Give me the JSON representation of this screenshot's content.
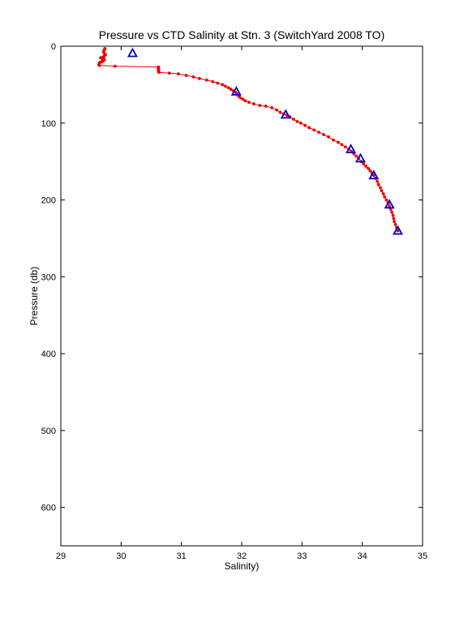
{
  "chart_data": {
    "type": "scatter",
    "title": "Pressure vs CTD Salinity at Stn. 3 (SwitchYard 2008 TO)",
    "xlabel": "Salinity)",
    "ylabel": "Pressure (db)",
    "xlim": [
      29,
      35
    ],
    "ylim": [
      0,
      650
    ],
    "y_reversed": true,
    "grid": false,
    "x_ticks": [
      29,
      30,
      31,
      32,
      33,
      34,
      35
    ],
    "y_ticks": [
      0,
      100,
      200,
      300,
      400,
      500,
      600
    ],
    "series": [
      {
        "style": "line-with-dots",
        "color": "#ee0000",
        "points": [
          [
            29.73,
            3
          ],
          [
            29.72,
            5
          ],
          [
            29.71,
            7
          ],
          [
            29.72,
            9
          ],
          [
            29.74,
            11
          ],
          [
            29.72,
            13
          ],
          [
            29.7,
            14
          ],
          [
            29.66,
            15
          ],
          [
            29.68,
            16
          ],
          [
            29.72,
            17
          ],
          [
            29.72,
            18
          ],
          [
            29.7,
            19
          ],
          [
            29.68,
            20
          ],
          [
            29.65,
            21
          ],
          [
            29.64,
            22
          ],
          [
            29.64,
            23
          ],
          [
            29.63,
            24
          ],
          [
            29.64,
            25
          ],
          [
            29.9,
            26
          ],
          [
            30.62,
            27
          ],
          [
            30.62,
            28
          ],
          [
            30.62,
            29
          ],
          [
            30.62,
            30
          ],
          [
            30.62,
            31
          ],
          [
            30.62,
            32
          ],
          [
            30.62,
            33
          ],
          [
            30.63,
            34
          ],
          [
            30.8,
            35
          ],
          [
            30.95,
            36
          ],
          [
            31.08,
            38
          ],
          [
            31.2,
            40
          ],
          [
            31.3,
            42
          ],
          [
            31.42,
            44
          ],
          [
            31.52,
            46
          ],
          [
            31.6,
            48
          ],
          [
            31.68,
            50
          ],
          [
            31.73,
            52
          ],
          [
            31.78,
            54
          ],
          [
            31.82,
            56
          ],
          [
            31.86,
            58
          ],
          [
            31.9,
            60
          ],
          [
            31.92,
            62
          ],
          [
            31.95,
            65
          ],
          [
            31.98,
            67
          ],
          [
            32.02,
            69
          ],
          [
            32.06,
            71
          ],
          [
            32.12,
            73
          ],
          [
            32.2,
            75
          ],
          [
            32.3,
            77
          ],
          [
            32.4,
            78
          ],
          [
            32.5,
            80
          ],
          [
            32.58,
            83
          ],
          [
            32.64,
            86
          ],
          [
            32.7,
            88
          ],
          [
            32.75,
            90
          ],
          [
            32.8,
            92
          ],
          [
            32.86,
            95
          ],
          [
            32.92,
            98
          ],
          [
            32.98,
            100
          ],
          [
            33.05,
            103
          ],
          [
            33.12,
            106
          ],
          [
            33.2,
            109
          ],
          [
            33.28,
            112
          ],
          [
            33.36,
            115
          ],
          [
            33.44,
            118
          ],
          [
            33.52,
            122
          ],
          [
            33.6,
            125
          ],
          [
            33.66,
            128
          ],
          [
            33.72,
            131
          ],
          [
            33.78,
            134
          ],
          [
            33.82,
            137
          ],
          [
            33.86,
            140
          ],
          [
            33.9,
            143
          ],
          [
            33.94,
            146
          ],
          [
            33.98,
            150
          ],
          [
            34.02,
            153
          ],
          [
            34.06,
            156
          ],
          [
            34.1,
            159
          ],
          [
            34.13,
            162
          ],
          [
            34.16,
            165
          ],
          [
            34.19,
            168
          ],
          [
            34.22,
            172
          ],
          [
            34.25,
            176
          ],
          [
            34.27,
            180
          ],
          [
            34.3,
            184
          ],
          [
            34.32,
            188
          ],
          [
            34.35,
            192
          ],
          [
            34.37,
            196
          ],
          [
            34.4,
            200
          ],
          [
            34.43,
            204
          ],
          [
            34.45,
            208
          ],
          [
            34.47,
            212
          ],
          [
            34.49,
            216
          ],
          [
            34.51,
            220
          ],
          [
            34.52,
            224
          ],
          [
            34.53,
            228
          ],
          [
            34.55,
            232
          ],
          [
            34.57,
            236
          ],
          [
            34.59,
            240
          ]
        ]
      },
      {
        "style": "triangle-markers",
        "color": "#0000cc",
        "points": [
          [
            30.19,
            9
          ],
          [
            31.91,
            59
          ],
          [
            32.73,
            89
          ],
          [
            33.81,
            134
          ],
          [
            33.97,
            146
          ],
          [
            34.19,
            168
          ],
          [
            34.45,
            206
          ],
          [
            34.59,
            240
          ]
        ]
      }
    ]
  }
}
